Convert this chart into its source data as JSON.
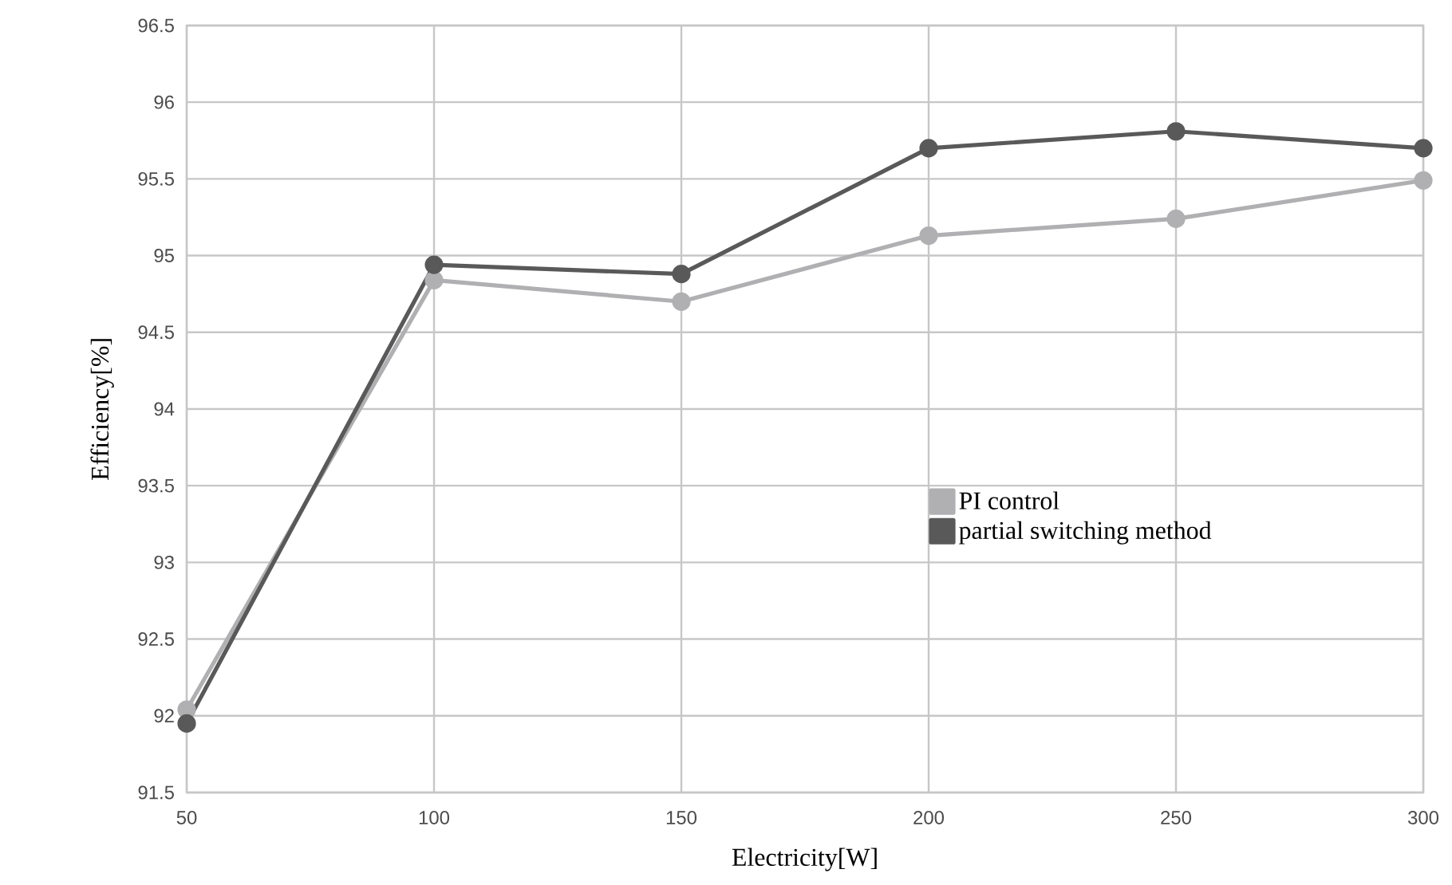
{
  "chart_data": {
    "type": "line",
    "xlabel": "Electricity[W]",
    "ylabel": "Efficiency[%]",
    "x": [
      50,
      100,
      150,
      200,
      250,
      300
    ],
    "series": [
      {
        "name": "PI control",
        "color": "#b0b0b2",
        "values": [
          92.04,
          94.84,
          94.7,
          95.13,
          95.24,
          95.49
        ]
      },
      {
        "name": "partial switching method",
        "color": "#595959",
        "values": [
          91.95,
          94.94,
          94.88,
          95.7,
          95.81,
          95.7
        ]
      }
    ],
    "xlim": [
      50,
      300
    ],
    "xticks": [
      50,
      100,
      150,
      200,
      250,
      300
    ],
    "ylim": [
      91.5,
      96.5
    ],
    "yticks": [
      91.5,
      92,
      92.5,
      93,
      93.5,
      94,
      94.5,
      95,
      95.5,
      96,
      96.5
    ],
    "grid": true,
    "legend": "right",
    "marker": "circle",
    "line_style": "solid"
  }
}
